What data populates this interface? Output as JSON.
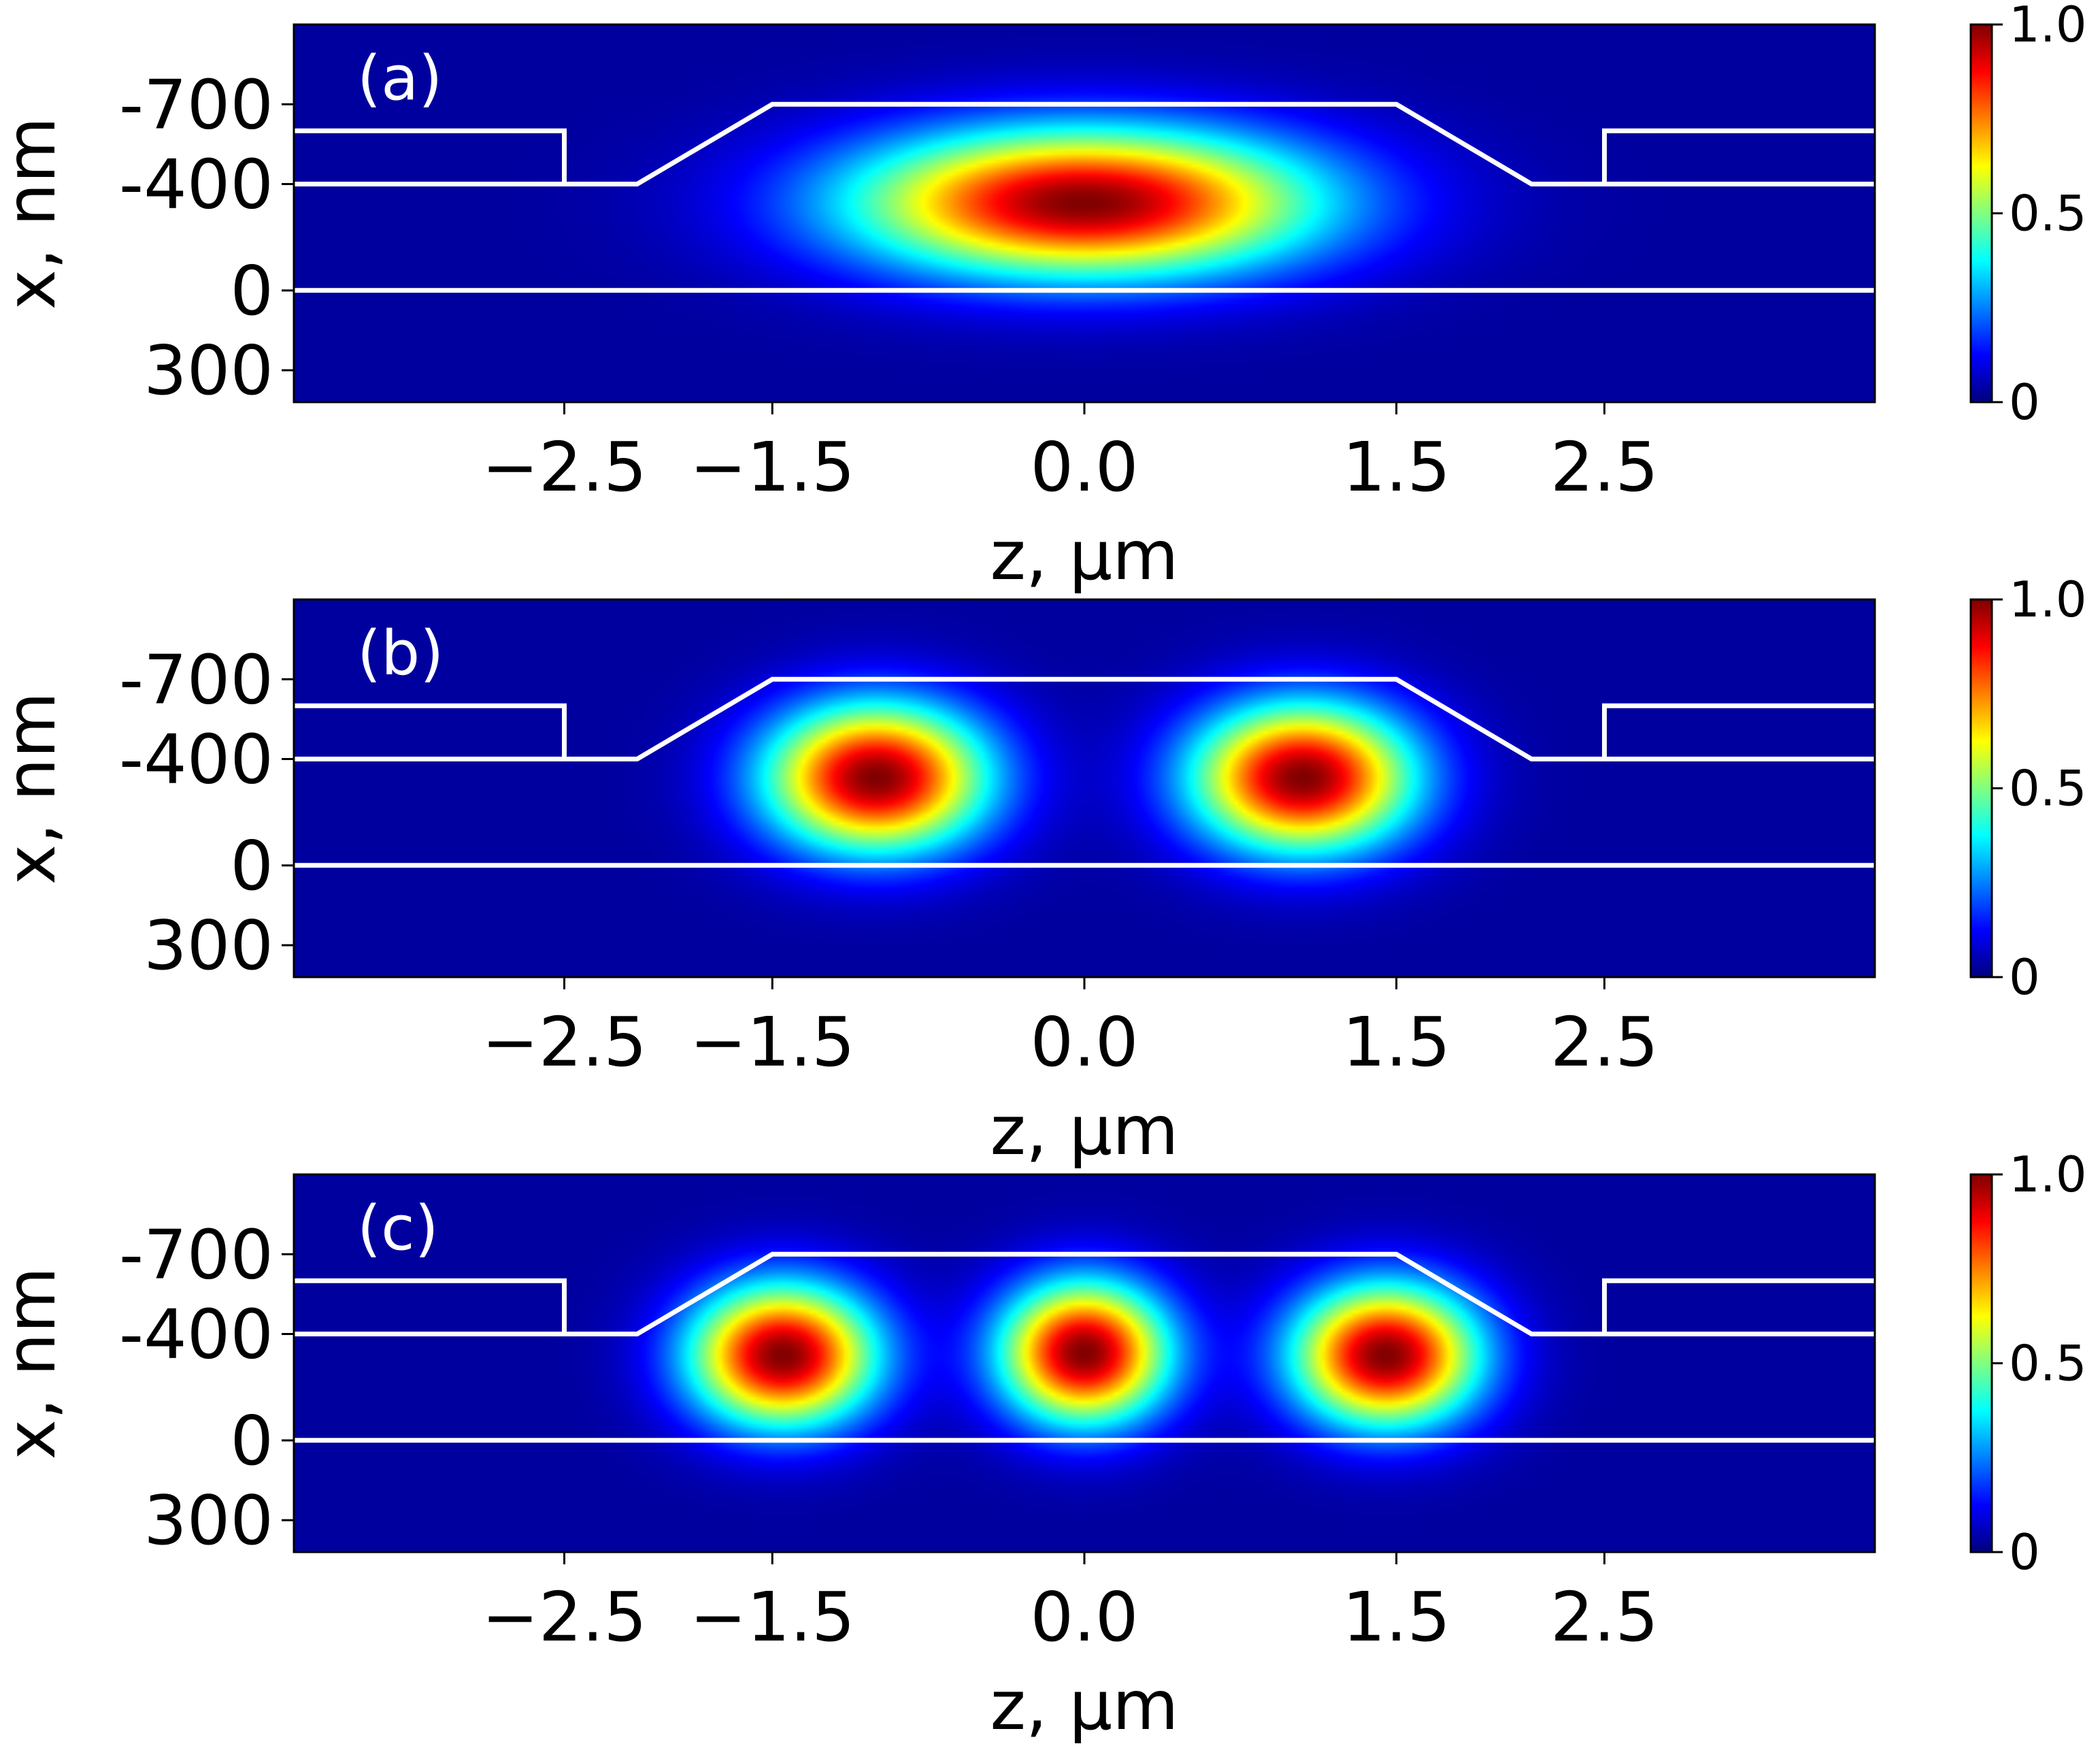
{
  "figure": {
    "colormap": [
      "#00007f",
      "#0000ff",
      "#0080ff",
      "#00ffff",
      "#80ff80",
      "#ffff00",
      "#ff8000",
      "#ff0000",
      "#800000"
    ],
    "background_color": "#00008b",
    "outline_color": "#ffffff"
  },
  "chart_data": [
    {
      "type": "heatmap",
      "panel_label": "(a)",
      "xlabel": "z, μm",
      "ylabel": "x, nm",
      "x_ticks": [
        -2.5,
        -1.5,
        0.0,
        1.5,
        2.5
      ],
      "x_tick_labels": [
        "−2.5",
        "−1.5",
        "0.0",
        "1.5",
        "2.5"
      ],
      "y_ticks": [
        -700,
        -400,
        0,
        300
      ],
      "y_tick_labels": [
        "-700",
        "-400",
        "0",
        "300"
      ],
      "xlim": [
        -3.8,
        3.8
      ],
      "ylim": [
        420,
        -1000
      ],
      "colorbar": {
        "ticks": [
          0,
          0.5,
          1.0
        ],
        "tick_labels": [
          "0",
          "0.5",
          "1.0"
        ],
        "range": [
          0,
          1
        ]
      },
      "waveguide_outline": {
        "top_segment": [
          [
            -1.5,
            -700
          ],
          [
            1.5,
            -700
          ]
        ],
        "path": [
          [
            -3.8,
            -600
          ],
          [
            -2.5,
            -600
          ],
          [
            -2.5,
            -400
          ],
          [
            -2.15,
            -400
          ],
          [
            -1.5,
            -700
          ],
          [
            1.5,
            -700
          ],
          [
            2.15,
            -400
          ],
          [
            2.5,
            -400
          ],
          [
            2.5,
            -600
          ],
          [
            3.8,
            -600
          ]
        ],
        "left_lower": [
          [
            -3.8,
            -400
          ],
          [
            -2.5,
            -400
          ]
        ],
        "right_lower": [
          [
            2.5,
            -400
          ],
          [
            3.8,
            -400
          ]
        ],
        "substrate_line": [
          [
            -3.8,
            0
          ],
          [
            3.8,
            0
          ]
        ]
      },
      "field_lobes": [
        {
          "z": 0.0,
          "x": -330,
          "sigma_z": 1.05,
          "sigma_x": 260,
          "peak": 1.0
        }
      ]
    },
    {
      "type": "heatmap",
      "panel_label": "(b)",
      "xlabel": "z, μm",
      "ylabel": "x, nm",
      "x_ticks": [
        -2.5,
        -1.5,
        0.0,
        1.5,
        2.5
      ],
      "x_tick_labels": [
        "−2.5",
        "−1.5",
        "0.0",
        "1.5",
        "2.5"
      ],
      "y_ticks": [
        -700,
        -400,
        0,
        300
      ],
      "y_tick_labels": [
        "-700",
        "-400",
        "0",
        "300"
      ],
      "xlim": [
        -3.8,
        3.8
      ],
      "ylim": [
        420,
        -1000
      ],
      "colorbar": {
        "ticks": [
          0,
          0.5,
          1.0
        ],
        "tick_labels": [
          "0",
          "0.5",
          "1.0"
        ],
        "range": [
          0,
          1
        ]
      },
      "waveguide_outline": {
        "path": [
          [
            -3.8,
            -600
          ],
          [
            -2.5,
            -600
          ],
          [
            -2.5,
            -400
          ],
          [
            -2.15,
            -400
          ],
          [
            -1.5,
            -700
          ],
          [
            1.5,
            -700
          ],
          [
            2.15,
            -400
          ],
          [
            2.5,
            -400
          ],
          [
            2.5,
            -600
          ],
          [
            3.8,
            -600
          ]
        ],
        "left_lower": [
          [
            -3.8,
            -400
          ],
          [
            -2.5,
            -400
          ]
        ],
        "right_lower": [
          [
            2.5,
            -400
          ],
          [
            3.8,
            -400
          ]
        ],
        "substrate_line": [
          [
            -3.8,
            0
          ],
          [
            3.8,
            0
          ]
        ]
      },
      "field_lobes": [
        {
          "z": -1.0,
          "x": -330,
          "sigma_z": 0.5,
          "sigma_x": 260,
          "peak": 1.0
        },
        {
          "z": 1.05,
          "x": -330,
          "sigma_z": 0.5,
          "sigma_x": 260,
          "peak": 1.0
        }
      ]
    },
    {
      "type": "heatmap",
      "panel_label": "(c)",
      "xlabel": "z, μm",
      "ylabel": "x, nm",
      "x_ticks": [
        -2.5,
        -1.5,
        0.0,
        1.5,
        2.5
      ],
      "x_tick_labels": [
        "−2.5",
        "−1.5",
        "0.0",
        "1.5",
        "2.5"
      ],
      "y_ticks": [
        -700,
        -400,
        0,
        300
      ],
      "y_tick_labels": [
        "-700",
        "-400",
        "0",
        "300"
      ],
      "xlim": [
        -3.8,
        3.8
      ],
      "ylim": [
        420,
        -1000
      ],
      "colorbar": {
        "ticks": [
          0,
          0.5,
          1.0
        ],
        "tick_labels": [
          "0",
          "0.5",
          "1.0"
        ],
        "range": [
          0,
          1
        ]
      },
      "waveguide_outline": {
        "path": [
          [
            -3.8,
            -600
          ],
          [
            -2.5,
            -600
          ],
          [
            -2.5,
            -400
          ],
          [
            -2.15,
            -400
          ],
          [
            -1.5,
            -700
          ],
          [
            1.5,
            -700
          ],
          [
            2.15,
            -400
          ],
          [
            2.5,
            -400
          ],
          [
            2.5,
            -600
          ],
          [
            3.8,
            -600
          ]
        ],
        "left_lower": [
          [
            -3.8,
            -400
          ],
          [
            -2.5,
            -400
          ]
        ],
        "right_lower": [
          [
            2.5,
            -400
          ],
          [
            3.8,
            -400
          ]
        ],
        "substrate_line": [
          [
            -3.8,
            0
          ],
          [
            3.8,
            0
          ]
        ]
      },
      "field_lobes": [
        {
          "z": -1.45,
          "x": -320,
          "sigma_z": 0.42,
          "sigma_x": 250,
          "peak": 1.0
        },
        {
          "z": 0.0,
          "x": -330,
          "sigma_z": 0.38,
          "sigma_x": 250,
          "peak": 1.0
        },
        {
          "z": 1.45,
          "x": -320,
          "sigma_z": 0.42,
          "sigma_x": 250,
          "peak": 1.0
        }
      ]
    }
  ]
}
